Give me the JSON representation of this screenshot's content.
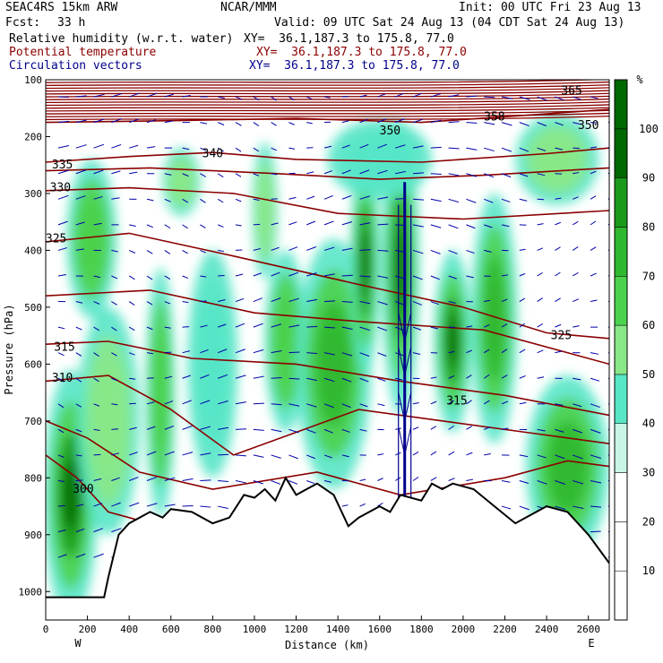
{
  "header": {
    "model": "SEAC4RS 15km ARW",
    "org": "NCAR/MMM",
    "init": "Init: 00 UTC Fri 23 Aug 13",
    "fcst_label": "Fcst:",
    "fcst_value": "33 h",
    "valid": "Valid: 09 UTC Sat 24 Aug 13 (04 CDT Sat 24 Aug 13)",
    "fields": [
      {
        "name": "Relative humidity (w.r.t. water)",
        "xy": "XY=  36.1,187.3 to 175.8, 77.0",
        "color": "#000000"
      },
      {
        "name": "Potential temperature",
        "xy": "XY=  36.1,187.3 to 175.8, 77.0",
        "color": "#8b0000"
      },
      {
        "name": "Circulation vectors",
        "xy": "XY=  36.1,187.3 to 175.8, 77.0",
        "color": "#00008b"
      }
    ]
  },
  "chart_data": {
    "type": "heatmap",
    "xlabel": "Distance (km)",
    "ylabel": "Pressure (hPa)",
    "xlim": [
      0,
      2700
    ],
    "ylim": [
      1050,
      100
    ],
    "x_ticks": [
      "0",
      "200",
      "400",
      "600",
      "800",
      "1000",
      "1200",
      "1400",
      "1600",
      "1800",
      "2000",
      "2200",
      "2400",
      "2600"
    ],
    "y_ticks": [
      "100",
      "200",
      "300",
      "400",
      "500",
      "600",
      "700",
      "800",
      "900",
      "1000"
    ],
    "x_end_labels": [
      "W",
      "E"
    ],
    "colorbar": {
      "unit": "%",
      "ticks": [
        "10",
        "20",
        "30",
        "40",
        "50",
        "60",
        "70",
        "80",
        "90",
        "100"
      ],
      "colors": [
        "#ffffff",
        "#ffffff",
        "#ffffff",
        "#c8f5e6",
        "#58e6c6",
        "#88e888",
        "#4cd24c",
        "#30b830",
        "#1a9a1a",
        "#006800"
      ]
    },
    "theta_labels": [
      {
        "text": "365",
        "x": 2520,
        "p": 120
      },
      {
        "text": "358",
        "x": 2150,
        "p": 165
      },
      {
        "text": "350",
        "x": 1650,
        "p": 190
      },
      {
        "text": "350",
        "x": 2600,
        "p": 180
      },
      {
        "text": "340",
        "x": 800,
        "p": 230
      },
      {
        "text": "335",
        "x": 80,
        "p": 250
      },
      {
        "text": "330",
        "x": 70,
        "p": 290
      },
      {
        "text": "325",
        "x": 50,
        "p": 380
      },
      {
        "text": "325",
        "x": 2470,
        "p": 550
      },
      {
        "text": "315",
        "x": 90,
        "p": 570
      },
      {
        "text": "310",
        "x": 80,
        "p": 625
      },
      {
        "text": "315",
        "x": 1970,
        "p": 665
      },
      {
        "text": "300",
        "x": 180,
        "p": 820
      }
    ],
    "theta_lines": [
      {
        "level": 350,
        "points": [
          [
            0,
            175
          ],
          [
            600,
            172
          ],
          [
            1200,
            168
          ],
          [
            1800,
            175
          ],
          [
            2400,
            160
          ],
          [
            2700,
            152
          ]
        ]
      },
      {
        "level": 340,
        "points": [
          [
            0,
            245
          ],
          [
            400,
            235
          ],
          [
            800,
            228
          ],
          [
            1200,
            240
          ],
          [
            1800,
            245
          ],
          [
            2400,
            230
          ],
          [
            2700,
            220
          ]
        ]
      },
      {
        "level": 335,
        "points": [
          [
            0,
            260
          ],
          [
            500,
            255
          ],
          [
            1100,
            265
          ],
          [
            1600,
            275
          ],
          [
            2100,
            268
          ],
          [
            2700,
            255
          ]
        ]
      },
      {
        "level": 330,
        "points": [
          [
            0,
            295
          ],
          [
            400,
            290
          ],
          [
            900,
            300
          ],
          [
            1400,
            335
          ],
          [
            2000,
            345
          ],
          [
            2700,
            330
          ]
        ]
      },
      {
        "level": 325,
        "points": [
          [
            0,
            385
          ],
          [
            400,
            370
          ],
          [
            900,
            410
          ],
          [
            1500,
            460
          ],
          [
            2000,
            500
          ],
          [
            2400,
            545
          ],
          [
            2700,
            555
          ]
        ]
      },
      {
        "level": 320,
        "points": [
          [
            0,
            480
          ],
          [
            500,
            470
          ],
          [
            1000,
            510
          ],
          [
            1500,
            525
          ],
          [
            2100,
            540
          ],
          [
            2700,
            600
          ]
        ]
      },
      {
        "level": 315,
        "points": [
          [
            0,
            565
          ],
          [
            300,
            560
          ],
          [
            700,
            590
          ],
          [
            1200,
            600
          ],
          [
            1700,
            630
          ],
          [
            2200,
            655
          ],
          [
            2700,
            690
          ]
        ]
      },
      {
        "level": 310,
        "points": [
          [
            0,
            630
          ],
          [
            300,
            620
          ],
          [
            600,
            680
          ],
          [
            900,
            760
          ],
          [
            1200,
            720
          ],
          [
            1500,
            680
          ],
          [
            1900,
            700
          ],
          [
            2300,
            720
          ],
          [
            2700,
            740
          ]
        ]
      },
      {
        "level": 305,
        "points": [
          [
            0,
            700
          ],
          [
            200,
            730
          ],
          [
            450,
            790
          ],
          [
            800,
            820
          ],
          [
            1300,
            790
          ],
          [
            1700,
            830
          ],
          [
            2200,
            800
          ],
          [
            2500,
            770
          ],
          [
            2700,
            780
          ]
        ]
      },
      {
        "level": 300,
        "points": [
          [
            0,
            760
          ],
          [
            150,
            800
          ],
          [
            300,
            860
          ],
          [
            500,
            880
          ]
        ]
      }
    ],
    "terrain": [
      [
        0,
        1010
      ],
      [
        100,
        1010
      ],
      [
        280,
        1010
      ],
      [
        300,
        975
      ],
      [
        350,
        900
      ],
      [
        400,
        880
      ],
      [
        500,
        860
      ],
      [
        560,
        870
      ],
      [
        600,
        855
      ],
      [
        700,
        860
      ],
      [
        800,
        880
      ],
      [
        880,
        870
      ],
      [
        950,
        830
      ],
      [
        1000,
        835
      ],
      [
        1050,
        820
      ],
      [
        1100,
        840
      ],
      [
        1150,
        800
      ],
      [
        1200,
        830
      ],
      [
        1250,
        820
      ],
      [
        1300,
        810
      ],
      [
        1380,
        830
      ],
      [
        1450,
        885
      ],
      [
        1500,
        870
      ],
      [
        1600,
        850
      ],
      [
        1650,
        860
      ],
      [
        1700,
        830
      ],
      [
        1800,
        840
      ],
      [
        1850,
        810
      ],
      [
        1900,
        820
      ],
      [
        1950,
        810
      ],
      [
        2050,
        820
      ],
      [
        2150,
        850
      ],
      [
        2250,
        880
      ],
      [
        2300,
        870
      ],
      [
        2400,
        850
      ],
      [
        2500,
        860
      ],
      [
        2600,
        900
      ],
      [
        2700,
        950
      ]
    ],
    "humid_cells": [
      {
        "x": 120,
        "p": 830,
        "rx": 130,
        "rp": 220,
        "rh": 95
      },
      {
        "x": 300,
        "p": 700,
        "rx": 150,
        "rp": 200,
        "rh": 55
      },
      {
        "x": 550,
        "p": 650,
        "rx": 70,
        "rp": 220,
        "rh": 65
      },
      {
        "x": 220,
        "p": 380,
        "rx": 120,
        "rp": 140,
        "rh": 60
      },
      {
        "x": 650,
        "p": 280,
        "rx": 90,
        "rp": 60,
        "rh": 55
      },
      {
        "x": 1050,
        "p": 330,
        "rx": 60,
        "rp": 120,
        "rh": 55
      },
      {
        "x": 1150,
        "p": 560,
        "rx": 100,
        "rp": 160,
        "rh": 60
      },
      {
        "x": 1380,
        "p": 600,
        "rx": 180,
        "rp": 220,
        "rh": 75
      },
      {
        "x": 1530,
        "p": 420,
        "rx": 70,
        "rp": 200,
        "rh": 90
      },
      {
        "x": 1700,
        "p": 430,
        "rx": 90,
        "rp": 260,
        "rh": 95
      },
      {
        "x": 1950,
        "p": 560,
        "rx": 90,
        "rp": 160,
        "rh": 90
      },
      {
        "x": 2150,
        "p": 520,
        "rx": 110,
        "rp": 220,
        "rh": 70
      },
      {
        "x": 2500,
        "p": 780,
        "rx": 200,
        "rp": 160,
        "rh": 70
      },
      {
        "x": 2450,
        "p": 240,
        "rx": 200,
        "rp": 80,
        "rh": 55
      },
      {
        "x": 1600,
        "p": 240,
        "rx": 250,
        "rp": 70,
        "rh": 45
      },
      {
        "x": 800,
        "p": 600,
        "rx": 120,
        "rp": 200,
        "rh": 40
      }
    ]
  }
}
